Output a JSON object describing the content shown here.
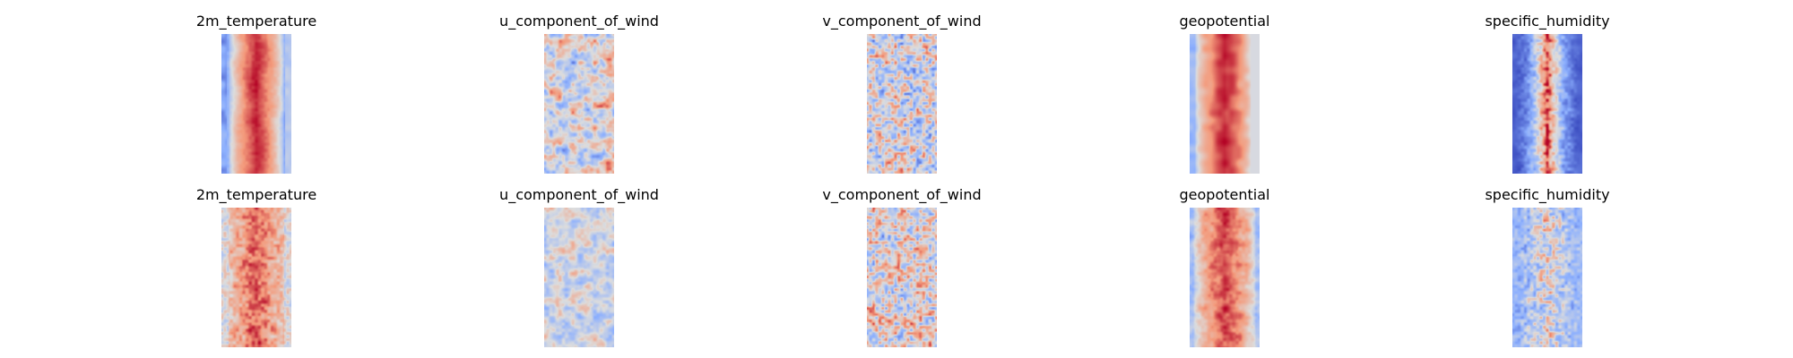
{
  "chart_data": [
    {
      "type": "heatmap",
      "title": "2m_temperature",
      "colormap": "coolwarm",
      "pattern": "temp_smooth"
    },
    {
      "type": "heatmap",
      "title": "u_component_of_wind",
      "colormap": "coolwarm",
      "pattern": "u_wind"
    },
    {
      "type": "heatmap",
      "title": "v_component_of_wind",
      "colormap": "coolwarm",
      "pattern": "v_wind"
    },
    {
      "type": "heatmap",
      "title": "geopotential",
      "colormap": "coolwarm",
      "pattern": "geo"
    },
    {
      "type": "heatmap",
      "title": "specific_humidity",
      "colormap": "coolwarm",
      "pattern": "humid_strong"
    },
    {
      "type": "heatmap",
      "title": "2m_temperature",
      "colormap": "coolwarm",
      "pattern": "temp_noisy"
    },
    {
      "type": "heatmap",
      "title": "u_component_of_wind",
      "colormap": "coolwarm",
      "pattern": "u_wind_weak"
    },
    {
      "type": "heatmap",
      "title": "v_component_of_wind",
      "colormap": "coolwarm",
      "pattern": "v_wind2"
    },
    {
      "type": "heatmap",
      "title": "geopotential",
      "colormap": "coolwarm",
      "pattern": "geo2"
    },
    {
      "type": "heatmap",
      "title": "specific_humidity",
      "colormap": "coolwarm",
      "pattern": "humid_weak"
    }
  ]
}
